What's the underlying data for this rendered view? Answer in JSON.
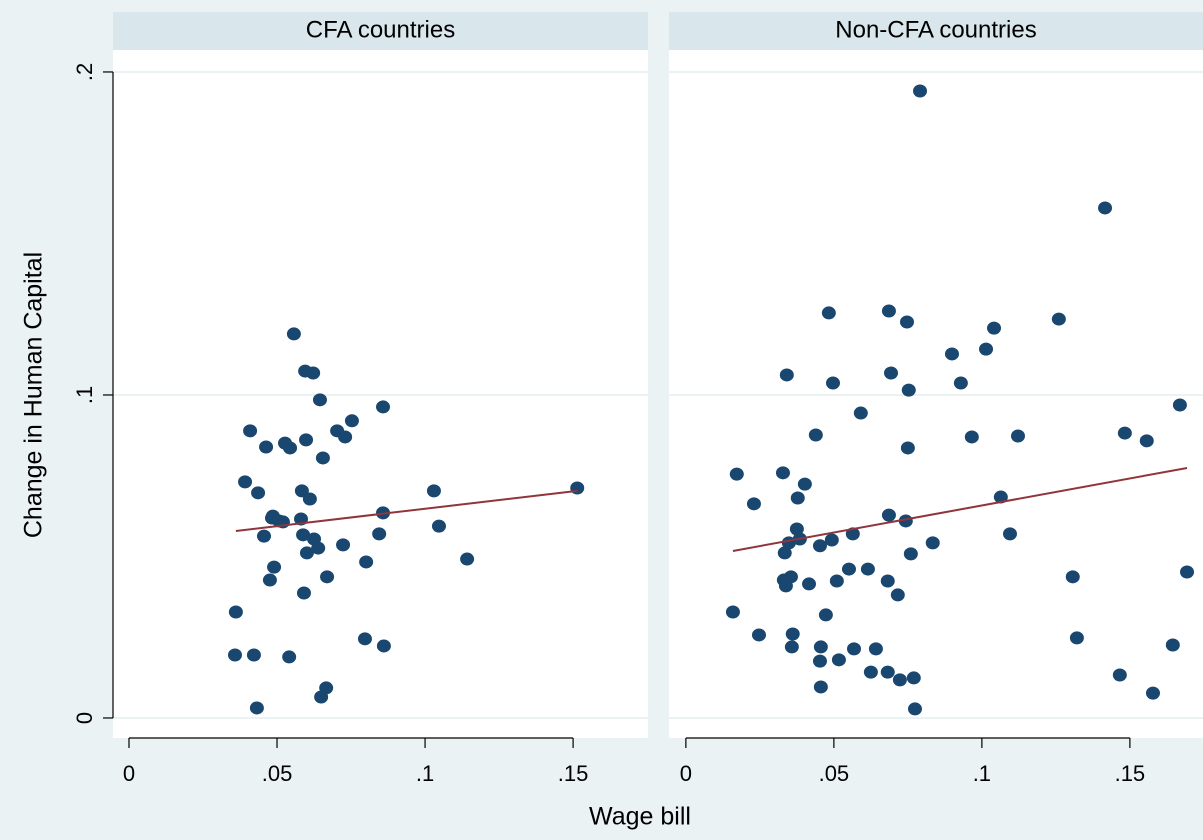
{
  "chart_data": {
    "type": "scatter",
    "xlabel": "Wage bill",
    "ylabel": "Change in Human Capital",
    "ylim": [
      -0.0062,
      0.2068
    ],
    "yticks": [
      0,
      {
        "value": 0.1,
        "label": ".1"
      },
      {
        "value": 0.2,
        "label": ".2"
      }
    ],
    "grid": true,
    "point_color": "#1a476f",
    "fit_color": "#90353b",
    "strip_color": "#d9e6eb",
    "panels": [
      {
        "title": "CFA countries",
        "xlim": [
          -0.0054,
          0.1753
        ],
        "xticks": [
          0,
          {
            "value": 0.05,
            "label": ".05"
          },
          {
            "value": 0.1,
            "label": ".1"
          },
          {
            "value": 0.15,
            "label": ".15"
          }
        ],
        "x": [
          0.0361,
          0.0358,
          0.0422,
          0.0432,
          0.0392,
          0.0409,
          0.0436,
          0.0456,
          0.0463,
          0.0476,
          0.0486,
          0.049,
          0.0483,
          0.0507,
          0.052,
          0.0527,
          0.0544,
          0.0541,
          0.0557,
          0.0581,
          0.0588,
          0.0584,
          0.0591,
          0.0598,
          0.0595,
          0.0601,
          0.0611,
          0.0622,
          0.0625,
          0.0639,
          0.0645,
          0.0649,
          0.0655,
          0.0669,
          0.0666,
          0.0703,
          0.0723,
          0.073,
          0.0753,
          0.0801,
          0.0797,
          0.0845,
          0.0858,
          0.0861,
          0.0858,
          0.103,
          0.1047,
          0.1142,
          0.1514
        ],
        "y": [
          0.0328,
          0.0195,
          0.0195,
          0.0031,
          0.0731,
          0.0889,
          0.0697,
          0.0563,
          0.0839,
          0.0427,
          0.0625,
          0.0467,
          0.0619,
          0.061,
          0.0607,
          0.0851,
          0.0836,
          0.0189,
          0.1189,
          0.0616,
          0.0567,
          0.0703,
          0.0387,
          0.0861,
          0.1074,
          0.0511,
          0.0678,
          0.1068,
          0.0554,
          0.0526,
          0.0985,
          0.0065,
          0.0805,
          0.0437,
          0.0093,
          0.0889,
          0.0536,
          0.087,
          0.092,
          0.0483,
          0.0245,
          0.057,
          0.0963,
          0.0223,
          0.0635,
          0.0703,
          0.0594,
          0.0492,
          0.0712
        ],
        "fit_x": [
          0.0361,
          0.1514
        ],
        "fit_y": [
          0.0579,
          0.0703
        ]
      },
      {
        "title": "Non-CFA countries",
        "xlim": [
          -0.0057,
          0.1747
        ],
        "xticks": [
          0,
          {
            "value": 0.05,
            "label": ".05"
          },
          {
            "value": 0.1,
            "label": ".1"
          },
          {
            "value": 0.15,
            "label": ".15"
          }
        ],
        "x": [
          0.0159,
          0.0172,
          0.023,
          0.0247,
          0.0328,
          0.0334,
          0.0331,
          0.0338,
          0.0348,
          0.0341,
          0.0355,
          0.0358,
          0.0361,
          0.0375,
          0.0378,
          0.0385,
          0.0402,
          0.0416,
          0.0439,
          0.0453,
          0.0456,
          0.0453,
          0.0456,
          0.0473,
          0.0483,
          0.0493,
          0.0497,
          0.051,
          0.0517,
          0.0551,
          0.0564,
          0.0568,
          0.0591,
          0.0615,
          0.0625,
          0.0642,
          0.0682,
          0.0686,
          0.0686,
          0.0693,
          0.0682,
          0.0716,
          0.0723,
          0.0743,
          0.0747,
          0.075,
          0.0753,
          0.076,
          0.077,
          0.0774,
          0.0791,
          0.0834,
          0.0899,
          0.0929,
          0.0966,
          0.1014,
          0.1041,
          0.1064,
          0.1095,
          0.1122,
          0.126,
          0.1307,
          0.1321,
          0.1416,
          0.1466,
          0.1483,
          0.1557,
          0.1578,
          0.1645,
          0.1669,
          0.1693
        ],
        "y": [
          0.0328,
          0.0755,
          0.0663,
          0.0257,
          0.0759,
          0.0511,
          0.0427,
          0.0409,
          0.0542,
          0.1062,
          0.0437,
          0.022,
          0.026,
          0.0585,
          0.0681,
          0.0554,
          0.0724,
          0.0415,
          0.0876,
          0.0533,
          0.022,
          0.0176,
          0.0096,
          0.0319,
          0.1254,
          0.0551,
          0.1037,
          0.0424,
          0.018,
          0.0461,
          0.057,
          0.0214,
          0.0944,
          0.0461,
          0.0142,
          0.0214,
          0.0424,
          0.0628,
          0.126,
          0.1068,
          0.0142,
          0.0381,
          0.0118,
          0.061,
          0.1226,
          0.0836,
          0.1015,
          0.0508,
          0.0124,
          0.0028,
          0.1941,
          0.0542,
          0.1127,
          0.1037,
          0.087,
          0.1142,
          0.1207,
          0.0684,
          0.057,
          0.0873,
          0.1235,
          0.0437,
          0.0248,
          0.1579,
          0.0133,
          0.0882,
          0.0858,
          0.0077,
          0.0226,
          0.0969,
          0.0452
        ],
        "fit_x": [
          0.0159,
          0.1693
        ],
        "fit_y": [
          0.0517,
          0.0774
        ]
      }
    ]
  }
}
